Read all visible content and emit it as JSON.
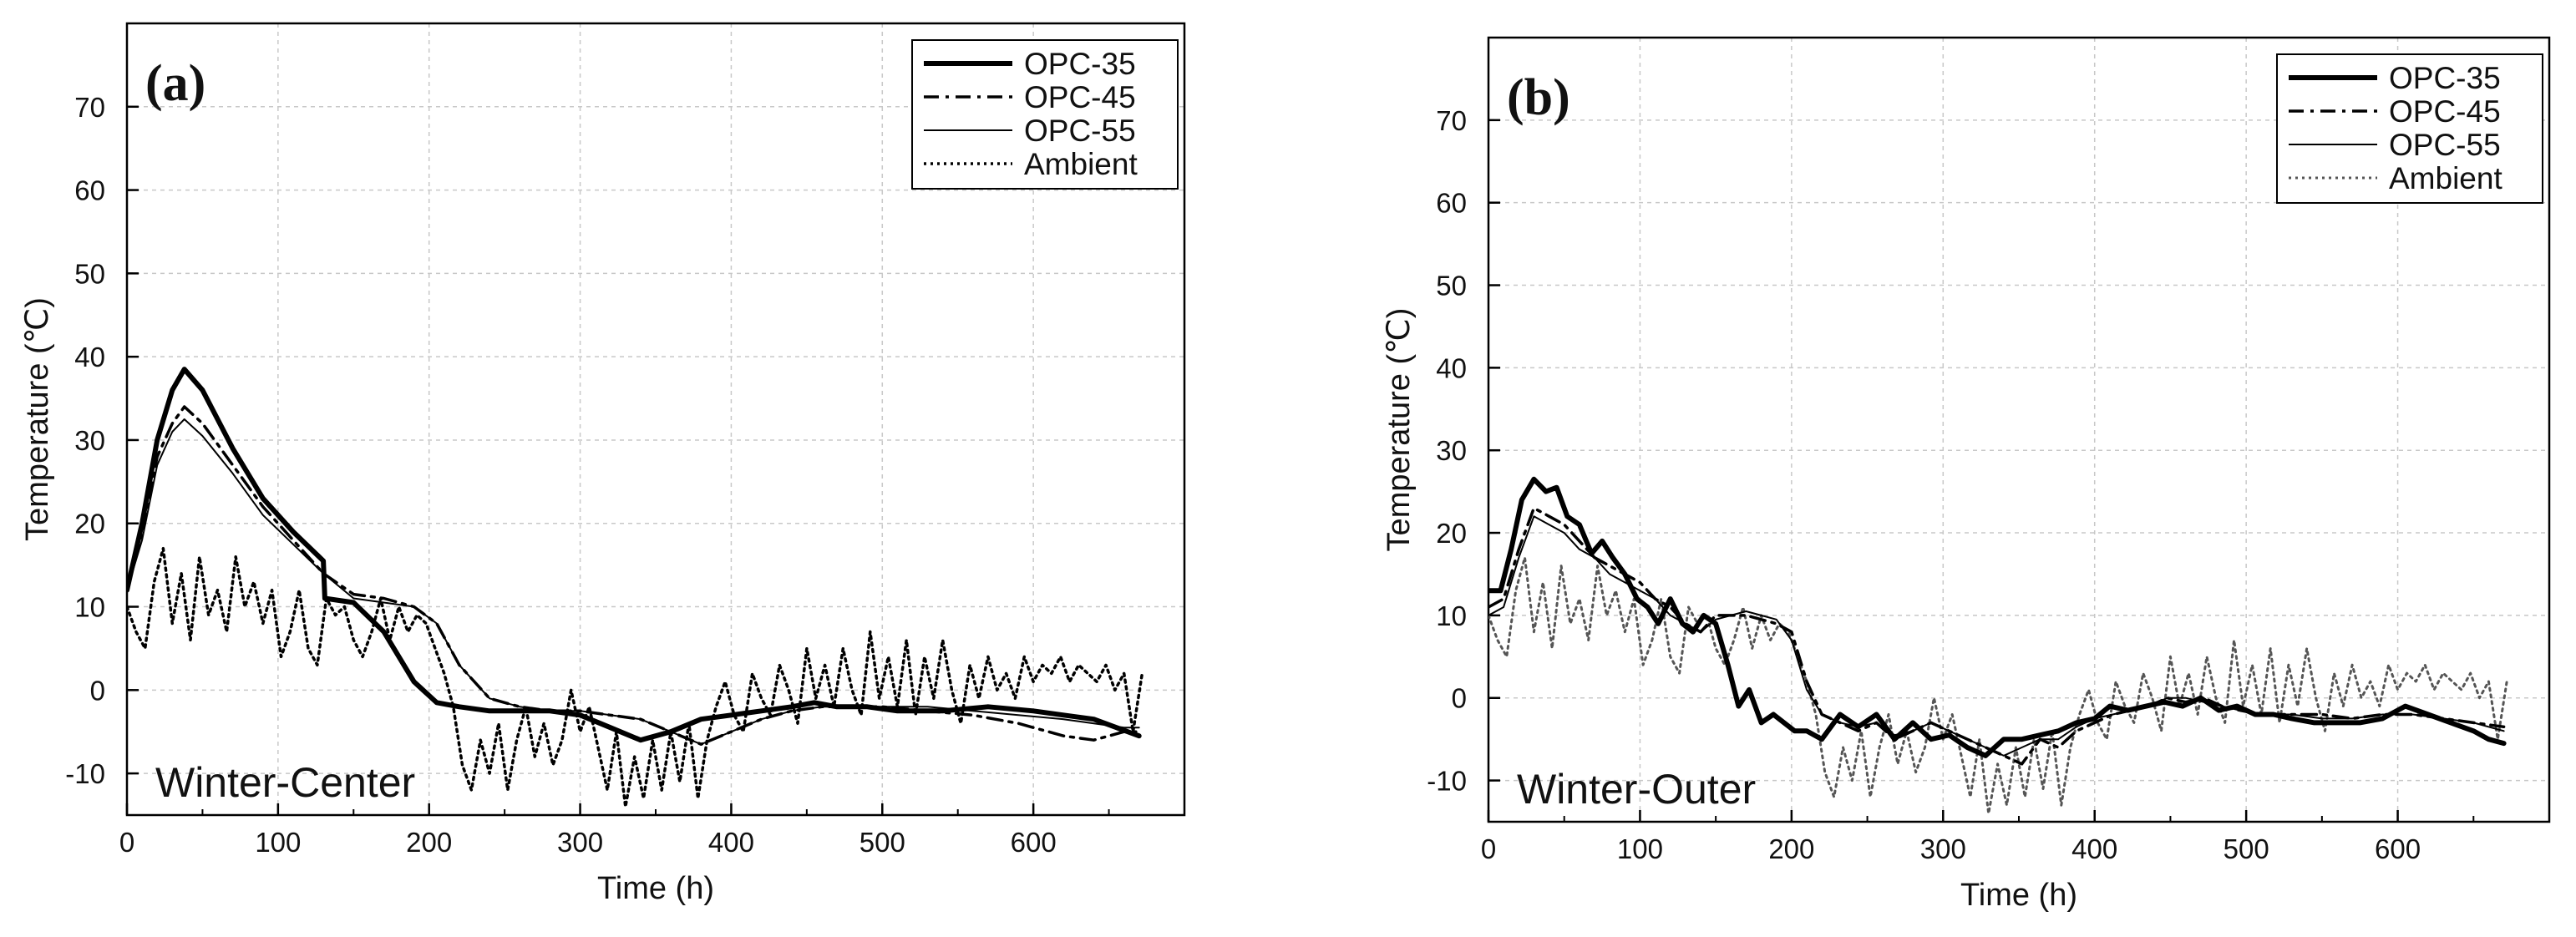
{
  "chart_data": [
    {
      "type": "line",
      "panel_label": "(a)",
      "annotation": "Winter-Center",
      "xlabel": "Time (h)",
      "ylabel": "Temperature (℃)",
      "xlim": [
        0,
        700
      ],
      "ylim": [
        -15,
        80
      ],
      "xticks": [
        0,
        100,
        200,
        300,
        400,
        500,
        600
      ],
      "yticks": [
        -10,
        0,
        10,
        20,
        30,
        40,
        50,
        60,
        70
      ],
      "grid": true,
      "legend_position": "top-right",
      "series": [
        {
          "name": "OPC-35",
          "style": "thick-solid",
          "x": [
            0,
            10,
            20,
            30,
            38,
            50,
            70,
            90,
            110,
            130,
            131,
            150,
            170,
            190,
            205,
            220,
            240,
            260,
            280,
            300,
            320,
            340,
            360,
            380,
            400,
            420,
            440,
            455,
            470,
            490,
            510,
            540,
            570,
            600,
            620,
            640,
            655,
            670
          ],
          "y": [
            12,
            20,
            30,
            36,
            38.5,
            36,
            29,
            23,
            19,
            15.5,
            11,
            10.5,
            7,
            1,
            -1.5,
            -2,
            -2.5,
            -2.5,
            -2.5,
            -3,
            -4.5,
            -6,
            -5,
            -3.5,
            -3,
            -2.5,
            -2,
            -1.5,
            -2,
            -2,
            -2.5,
            -2.5,
            -2,
            -2.5,
            -3,
            -3.5,
            -4.5,
            -5.5
          ]
        },
        {
          "name": "OPC-45",
          "style": "dash-dot",
          "x": [
            0,
            10,
            20,
            30,
            38,
            50,
            70,
            90,
            110,
            130,
            150,
            170,
            190,
            205,
            220,
            240,
            260,
            280,
            300,
            320,
            340,
            360,
            380,
            400,
            420,
            440,
            460,
            480,
            500,
            530,
            560,
            590,
            620,
            640,
            660,
            670
          ],
          "y": [
            12,
            19,
            28,
            32,
            34,
            32,
            27,
            22,
            18,
            14,
            11.5,
            11,
            10,
            8,
            3,
            -1,
            -2,
            -2.5,
            -2.5,
            -3,
            -3.5,
            -5,
            -6.5,
            -5,
            -3.5,
            -2.5,
            -2,
            -2,
            -2,
            -2.5,
            -3,
            -4,
            -5.5,
            -6,
            -5,
            -5
          ]
        },
        {
          "name": "OPC-55",
          "style": "thin-solid",
          "x": [
            0,
            10,
            20,
            30,
            38,
            50,
            70,
            90,
            110,
            130,
            150,
            170,
            190,
            205,
            220,
            240,
            260,
            280,
            300,
            320,
            340,
            360,
            380,
            400,
            420,
            440,
            460,
            480,
            500,
            530,
            560,
            590,
            620,
            640,
            660,
            670
          ],
          "y": [
            12,
            18,
            27,
            31,
            32.5,
            30.5,
            26,
            21,
            17.5,
            14,
            11,
            10.5,
            10,
            8,
            3,
            -1,
            -2,
            -2.5,
            -2.5,
            -3,
            -3.5,
            -5,
            -6.5,
            -5,
            -3.5,
            -2.5,
            -2,
            -2,
            -2,
            -2,
            -2.5,
            -3,
            -3.5,
            -4,
            -4.5,
            -4.5
          ]
        },
        {
          "name": "Ambient",
          "style": "dotted",
          "x": [
            0,
            6,
            12,
            18,
            24,
            30,
            36,
            42,
            48,
            54,
            60,
            66,
            72,
            78,
            84,
            90,
            96,
            102,
            108,
            114,
            120,
            126,
            132,
            138,
            144,
            150,
            156,
            162,
            168,
            174,
            180,
            186,
            192,
            198,
            204,
            210,
            216,
            222,
            228,
            234,
            240,
            246,
            252,
            258,
            264,
            270,
            276,
            282,
            288,
            294,
            300,
            306,
            312,
            318,
            324,
            330,
            336,
            342,
            348,
            354,
            360,
            366,
            372,
            378,
            384,
            390,
            396,
            402,
            408,
            414,
            420,
            426,
            432,
            438,
            444,
            450,
            456,
            462,
            468,
            474,
            480,
            486,
            492,
            498,
            504,
            510,
            516,
            522,
            528,
            534,
            540,
            546,
            552,
            558,
            564,
            570,
            576,
            582,
            588,
            594,
            600,
            606,
            612,
            618,
            624,
            630,
            636,
            642,
            648,
            654,
            660,
            666,
            672
          ],
          "y": [
            10,
            7,
            5,
            13,
            17,
            8,
            14,
            6,
            16,
            9,
            12,
            7,
            16,
            10,
            13,
            8,
            12,
            4,
            7,
            12,
            5,
            3,
            11,
            9,
            10,
            6,
            4,
            7,
            11,
            6,
            10,
            7,
            9,
            8,
            5,
            2,
            -2,
            -9,
            -12,
            -6,
            -10,
            -4,
            -12,
            -6,
            -2,
            -8,
            -4,
            -9,
            -6,
            0,
            -5,
            -2,
            -7,
            -12,
            -5,
            -14,
            -8,
            -13,
            -6,
            -12,
            -5,
            -11,
            -4,
            -13,
            -6,
            -2,
            1,
            -3,
            -5,
            2,
            -1,
            -3,
            3,
            0,
            -4,
            5,
            -1,
            3,
            -2,
            5,
            0,
            -3,
            7,
            -1,
            4,
            -2,
            6,
            -3,
            4,
            -1,
            6,
            0,
            -4,
            3,
            -1,
            4,
            0,
            2,
            -1,
            4,
            1,
            3,
            2,
            4,
            1,
            3,
            2,
            1,
            3,
            0,
            2,
            -5,
            2
          ]
        }
      ]
    },
    {
      "type": "line",
      "panel_label": "(b)",
      "annotation": "Winter-Outer",
      "xlabel": "Time (h)",
      "ylabel": "Temperature (℃)",
      "xlim": [
        0,
        700
      ],
      "ylim": [
        -15,
        80
      ],
      "xticks": [
        0,
        100,
        200,
        300,
        400,
        500,
        600
      ],
      "yticks": [
        -10,
        0,
        10,
        20,
        30,
        40,
        50,
        60,
        70
      ],
      "grid": true,
      "legend_position": "top-right",
      "series": [
        {
          "name": "OPC-35",
          "style": "thick-solid",
          "x": [
            0,
            8,
            15,
            22,
            30,
            38,
            45,
            52,
            60,
            68,
            75,
            82,
            90,
            98,
            105,
            112,
            120,
            128,
            135,
            142,
            150,
            158,
            165,
            172,
            180,
            188,
            195,
            202,
            210,
            220,
            232,
            244,
            256,
            268,
            280,
            292,
            304,
            316,
            328,
            340,
            352,
            364,
            376,
            388,
            400,
            410,
            422,
            434,
            446,
            458,
            470,
            482,
            494,
            506,
            518,
            530,
            545,
            560,
            575,
            590,
            605,
            620,
            635,
            650,
            660,
            670
          ],
          "y": [
            13,
            13,
            18,
            24,
            26.5,
            25,
            25.5,
            22,
            21,
            17.5,
            19,
            17,
            15,
            12,
            11,
            9,
            12,
            9,
            8,
            10,
            9,
            4,
            -1,
            1,
            -3,
            -2,
            -3,
            -4,
            -4,
            -5,
            -2,
            -3.5,
            -2,
            -5,
            -3,
            -5,
            -4.5,
            -6,
            -7,
            -5,
            -5,
            -4.5,
            -4,
            -3,
            -2.5,
            -1,
            -1.5,
            -1,
            -0.5,
            -1,
            0,
            -1.5,
            -1,
            -2,
            -2,
            -2.5,
            -3,
            -3,
            -3,
            -2.5,
            -1,
            -2,
            -3,
            -4,
            -5,
            -5.5
          ]
        },
        {
          "name": "OPC-45",
          "style": "dash-dot",
          "x": [
            0,
            10,
            20,
            30,
            40,
            50,
            60,
            70,
            80,
            90,
            100,
            110,
            120,
            130,
            140,
            150,
            160,
            170,
            180,
            190,
            200,
            210,
            220,
            232,
            244,
            256,
            268,
            280,
            292,
            304,
            316,
            328,
            340,
            352,
            364,
            376,
            388,
            400,
            412,
            424,
            436,
            448,
            460,
            472,
            484,
            496,
            510,
            530,
            550,
            570,
            590,
            610,
            630,
            650,
            670
          ],
          "y": [
            11,
            12,
            18,
            23,
            22,
            21,
            19,
            17,
            16,
            15,
            14,
            12,
            11,
            9,
            8,
            10,
            10,
            10,
            9.5,
            9,
            8,
            2,
            -2,
            -3,
            -4,
            -3,
            -5,
            -4,
            -3,
            -4,
            -5,
            -6,
            -7,
            -8,
            -5,
            -6,
            -4,
            -3,
            -2,
            -1.5,
            -1,
            0,
            -0.5,
            0,
            -1,
            -1.5,
            -2,
            -2,
            -2,
            -2.5,
            -2,
            -2,
            -2.5,
            -3,
            -3.5
          ]
        },
        {
          "name": "OPC-55",
          "style": "thin-solid",
          "x": [
            0,
            10,
            20,
            30,
            40,
            50,
            60,
            70,
            80,
            90,
            100,
            110,
            120,
            130,
            140,
            150,
            160,
            170,
            180,
            190,
            200,
            210,
            220,
            232,
            244,
            256,
            268,
            280,
            292,
            304,
            316,
            328,
            340,
            352,
            364,
            376,
            388,
            400,
            412,
            424,
            436,
            448,
            460,
            472,
            484,
            496,
            510,
            530,
            550,
            570,
            590,
            610,
            630,
            650,
            670
          ],
          "y": [
            10,
            11,
            17,
            22,
            21,
            20,
            18,
            17,
            15,
            14,
            13,
            12,
            10,
            9,
            8,
            9.5,
            10,
            10.5,
            10,
            9.5,
            7,
            1,
            -2,
            -3,
            -3.5,
            -3,
            -4.5,
            -4,
            -3,
            -4,
            -5,
            -6,
            -7,
            -6,
            -5,
            -5,
            -3.5,
            -2.5,
            -2,
            -1.5,
            -1,
            0,
            0,
            -0.5,
            -1,
            -1.5,
            -2,
            -2,
            -2.5,
            -2.5,
            -2,
            -2,
            -2.5,
            -3,
            -4
          ]
        },
        {
          "name": "Ambient",
          "style": "dotted-grey",
          "x": [
            0,
            6,
            12,
            18,
            24,
            30,
            36,
            42,
            48,
            54,
            60,
            66,
            72,
            78,
            84,
            90,
            96,
            102,
            108,
            114,
            120,
            126,
            132,
            138,
            144,
            150,
            156,
            162,
            168,
            174,
            180,
            186,
            192,
            198,
            204,
            210,
            216,
            222,
            228,
            234,
            240,
            246,
            252,
            258,
            264,
            270,
            276,
            282,
            288,
            294,
            300,
            306,
            312,
            318,
            324,
            330,
            336,
            342,
            348,
            354,
            360,
            366,
            372,
            378,
            384,
            390,
            396,
            402,
            408,
            414,
            420,
            426,
            432,
            438,
            444,
            450,
            456,
            462,
            468,
            474,
            480,
            486,
            492,
            498,
            504,
            510,
            516,
            522,
            528,
            534,
            540,
            546,
            552,
            558,
            564,
            570,
            576,
            582,
            588,
            594,
            600,
            606,
            612,
            618,
            624,
            630,
            636,
            642,
            648,
            654,
            660,
            666,
            672
          ],
          "y": [
            10,
            7,
            5,
            13,
            17,
            8,
            14,
            6,
            16,
            9,
            12,
            7,
            16,
            10,
            13,
            8,
            12,
            4,
            7,
            12,
            5,
            3,
            11,
            9,
            10,
            6,
            4,
            7,
            11,
            6,
            10,
            7,
            9,
            8,
            5,
            2,
            -2,
            -9,
            -12,
            -6,
            -10,
            -4,
            -12,
            -6,
            -2,
            -8,
            -4,
            -9,
            -6,
            0,
            -5,
            -2,
            -7,
            -12,
            -5,
            -14,
            -8,
            -13,
            -6,
            -12,
            -5,
            -11,
            -4,
            -13,
            -6,
            -2,
            1,
            -3,
            -5,
            2,
            -1,
            -3,
            3,
            0,
            -4,
            5,
            -1,
            3,
            -2,
            5,
            0,
            -3,
            7,
            -1,
            4,
            -2,
            6,
            -3,
            4,
            -1,
            6,
            0,
            -4,
            3,
            -1,
            4,
            0,
            2,
            -1,
            4,
            1,
            3,
            2,
            4,
            1,
            3,
            2,
            1,
            3,
            0,
            2,
            -5,
            2
          ]
        }
      ]
    }
  ]
}
